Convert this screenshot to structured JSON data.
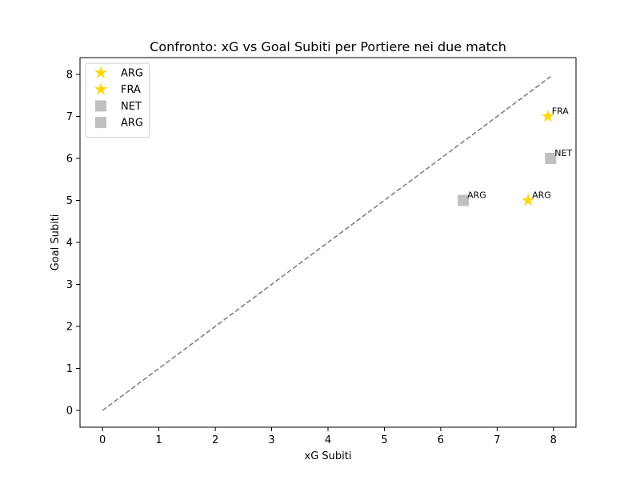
{
  "chart_data": {
    "type": "scatter",
    "title": "Confronto: xG vs Goal Subiti per Portiere nei due match",
    "xlabel": "xG Subiti",
    "ylabel": "Goal Subiti",
    "xlim": [
      -0.4,
      8.4
    ],
    "ylim": [
      -0.4,
      8.4
    ],
    "xticks": [
      0,
      1,
      2,
      3,
      4,
      5,
      6,
      7,
      8
    ],
    "yticks": [
      0,
      1,
      2,
      3,
      4,
      5,
      6,
      7,
      8
    ],
    "grid": false,
    "legend_position": "top-left",
    "reference_line": {
      "style": "dashed",
      "color": "#808080",
      "from": [
        0,
        0
      ],
      "to": [
        7.95,
        7.95
      ]
    },
    "series": [
      {
        "name": "ARG",
        "marker": "star",
        "color": "#FFD700",
        "points": [
          {
            "x": 7.55,
            "y": 5,
            "label": "ARG"
          }
        ]
      },
      {
        "name": "FRA",
        "marker": "star",
        "color": "#FFD700",
        "points": [
          {
            "x": 7.9,
            "y": 7,
            "label": "FRA"
          }
        ]
      },
      {
        "name": "NET",
        "marker": "square",
        "color": "#C0C0C0",
        "points": [
          {
            "x": 7.95,
            "y": 6,
            "label": "NET"
          }
        ]
      },
      {
        "name": "ARG",
        "marker": "square",
        "color": "#C0C0C0",
        "points": [
          {
            "x": 6.4,
            "y": 5,
            "label": "ARG"
          }
        ]
      }
    ]
  }
}
